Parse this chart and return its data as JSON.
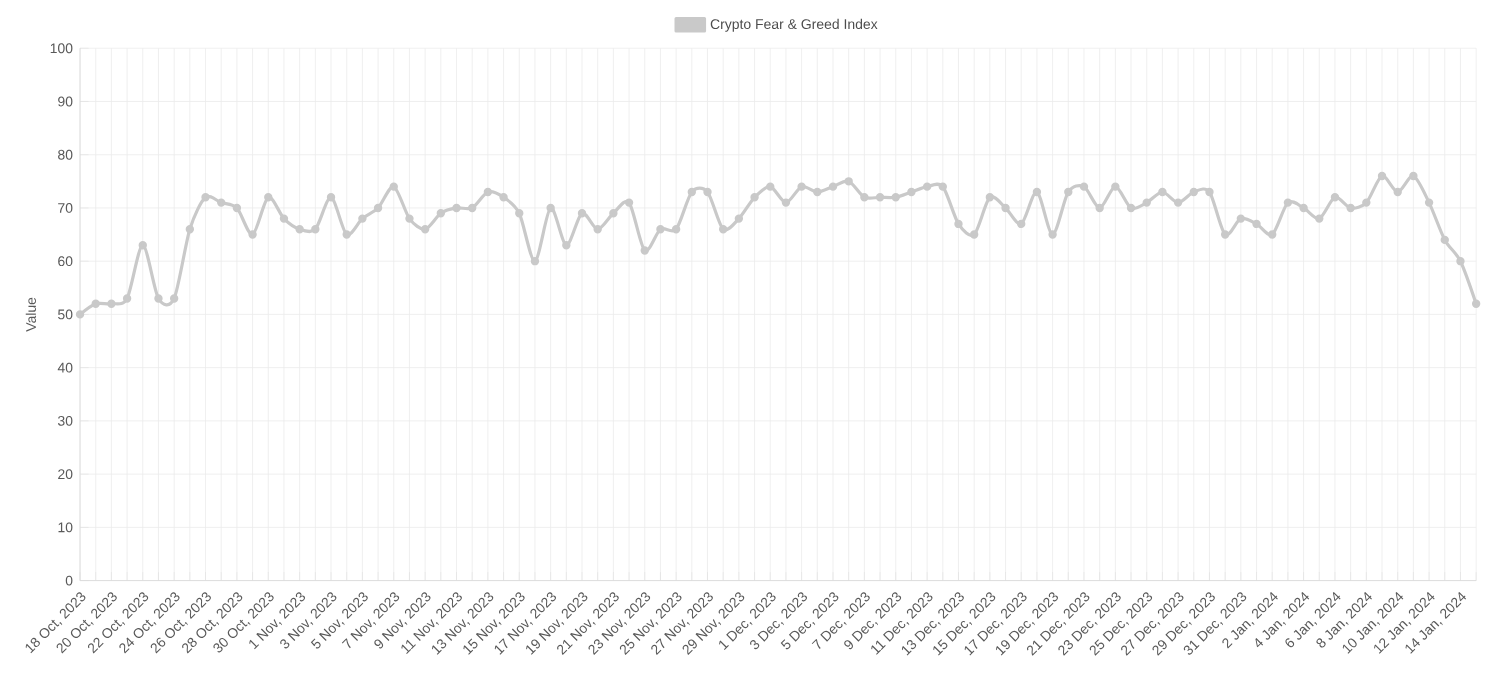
{
  "chart_data": {
    "type": "line",
    "ylabel": "Value",
    "categories": [
      "18 Oct, 2023",
      null,
      "20 Oct, 2023",
      null,
      "22 Oct, 2023",
      null,
      "24 Oct, 2023",
      null,
      "26 Oct, 2023",
      null,
      "28 Oct, 2023",
      null,
      "30 Oct, 2023",
      null,
      "1 Nov, 2023",
      null,
      "3 Nov, 2023",
      null,
      "5 Nov, 2023",
      null,
      "7 Nov, 2023",
      null,
      "9 Nov, 2023",
      null,
      "11 Nov, 2023",
      null,
      "13 Nov, 2023",
      null,
      "15 Nov, 2023",
      null,
      "17 Nov, 2023",
      null,
      "19 Nov, 2023",
      null,
      "21 Nov, 2023",
      null,
      "23 Nov, 2023",
      null,
      "25 Nov, 2023",
      null,
      "27 Nov, 2023",
      null,
      "29 Nov, 2023",
      null,
      "1 Dec, 2023",
      null,
      "3 Dec, 2023",
      null,
      "5 Dec, 2023",
      null,
      "7 Dec, 2023",
      null,
      "9 Dec, 2023",
      null,
      "11 Dec, 2023",
      null,
      "13 Dec, 2023",
      null,
      "15 Dec, 2023",
      null,
      "17 Dec, 2023",
      null,
      "19 Dec, 2023",
      null,
      "21 Dec, 2023",
      null,
      "23 Dec, 2023",
      null,
      "25 Dec, 2023",
      null,
      "27 Dec, 2023",
      null,
      "29 Dec, 2023",
      null,
      "31 Dec, 2023",
      null,
      "2 Jan, 2024",
      null,
      "4 Jan, 2024",
      null,
      "6 Jan, 2024",
      null,
      "8 Jan, 2024",
      null,
      "10 Jan, 2024",
      null,
      "12 Jan, 2024",
      null,
      "14 Jan, 2024",
      null
    ],
    "series": [
      {
        "name": "Crypto Fear & Greed Index",
        "color": "#c9c9c9",
        "values": [
          50,
          52,
          52,
          53,
          63,
          53,
          53,
          66,
          72,
          71,
          70,
          65,
          72,
          68,
          66,
          66,
          72,
          65,
          68,
          70,
          74,
          68,
          66,
          69,
          70,
          70,
          73,
          72,
          69,
          60,
          70,
          63,
          69,
          66,
          69,
          71,
          62,
          66,
          66,
          73,
          73,
          66,
          68,
          72,
          74,
          71,
          74,
          73,
          74,
          75,
          72,
          72,
          72,
          73,
          74,
          74,
          67,
          65,
          72,
          70,
          67,
          73,
          65,
          73,
          74,
          70,
          74,
          70,
          71,
          73,
          71,
          73,
          73,
          65,
          68,
          67,
          65,
          71,
          70,
          68,
          72,
          70,
          71,
          76,
          73,
          76,
          71,
          64,
          60,
          52
        ]
      }
    ],
    "ylim": [
      0,
      100
    ],
    "yticks": [
      0,
      10,
      20,
      30,
      40,
      50,
      60,
      70,
      80,
      90,
      100
    ],
    "grid": true,
    "legend": "top",
    "marker": "circle",
    "line_style": "solid"
  }
}
